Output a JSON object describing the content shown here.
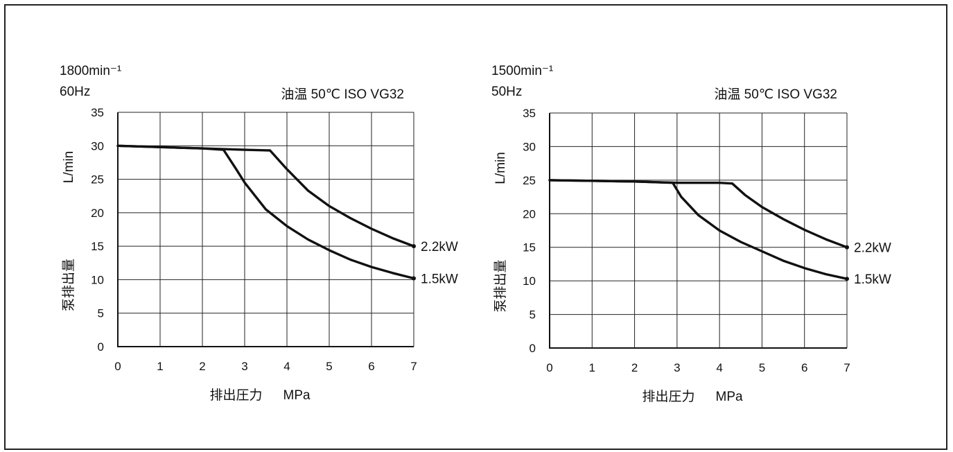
{
  "chart_data": [
    {
      "type": "line",
      "speed": "1800min⁻¹",
      "frequency": "60Hz",
      "condition": "油温  50℃    ISO VG32",
      "xlabel": "排出圧力",
      "xunit": "MPa",
      "ylabel": "泵排出量",
      "yunit": "L/min",
      "xlim": [
        0,
        7
      ],
      "ylim": [
        0,
        35
      ],
      "xticks": [
        "0",
        "1",
        "2",
        "3",
        "4",
        "5",
        "6",
        "7"
      ],
      "yticks": [
        "0",
        "5",
        "10",
        "15",
        "20",
        "25",
        "30",
        "35"
      ],
      "grid": true,
      "series": [
        {
          "name": "2.2kW",
          "points": [
            [
              0,
              30
            ],
            [
              1,
              29.8
            ],
            [
              2,
              29.6
            ],
            [
              3,
              29.4
            ],
            [
              3.6,
              29.3
            ],
            [
              4,
              26.5
            ],
            [
              4.5,
              23.3
            ],
            [
              5,
              21
            ],
            [
              5.5,
              19.2
            ],
            [
              6,
              17.6
            ],
            [
              6.5,
              16.2
            ],
            [
              7,
              15
            ]
          ]
        },
        {
          "name": "1.5kW",
          "points": [
            [
              0,
              30
            ],
            [
              1,
              29.8
            ],
            [
              2,
              29.6
            ],
            [
              2.5,
              29.4
            ],
            [
              2.8,
              26.5
            ],
            [
              3,
              24.5
            ],
            [
              3.5,
              20.5
            ],
            [
              4,
              18
            ],
            [
              4.5,
              16
            ],
            [
              5,
              14.4
            ],
            [
              5.5,
              13
            ],
            [
              6,
              11.9
            ],
            [
              6.5,
              11
            ],
            [
              7,
              10.2
            ]
          ]
        }
      ]
    },
    {
      "type": "line",
      "speed": "1500min⁻¹",
      "frequency": "50Hz",
      "condition": "油温  50℃    ISO VG32",
      "xlabel": "排出圧力",
      "xunit": "MPa",
      "ylabel": "泵排出量",
      "yunit": "L/min",
      "xlim": [
        0,
        7
      ],
      "ylim": [
        0,
        35
      ],
      "xticks": [
        "0",
        "1",
        "2",
        "3",
        "4",
        "5",
        "6",
        "7"
      ],
      "yticks": [
        "0",
        "5",
        "10",
        "15",
        "20",
        "25",
        "30",
        "35"
      ],
      "grid": true,
      "series": [
        {
          "name": "2.2kW",
          "points": [
            [
              0,
              25
            ],
            [
              1,
              24.9
            ],
            [
              2,
              24.8
            ],
            [
              3,
              24.6
            ],
            [
              4,
              24.6
            ],
            [
              4.3,
              24.5
            ],
            [
              4.6,
              22.8
            ],
            [
              5,
              21
            ],
            [
              5.5,
              19.2
            ],
            [
              6,
              17.6
            ],
            [
              6.5,
              16.2
            ],
            [
              7,
              15
            ]
          ]
        },
        {
          "name": "1.5kW",
          "points": [
            [
              0,
              25
            ],
            [
              1,
              24.9
            ],
            [
              2,
              24.8
            ],
            [
              2.9,
              24.6
            ],
            [
              3.1,
              22.5
            ],
            [
              3.5,
              19.8
            ],
            [
              4,
              17.5
            ],
            [
              4.5,
              15.8
            ],
            [
              5,
              14.4
            ],
            [
              5.5,
              13
            ],
            [
              6,
              11.9
            ],
            [
              6.5,
              11
            ],
            [
              7,
              10.3
            ]
          ]
        }
      ]
    }
  ]
}
